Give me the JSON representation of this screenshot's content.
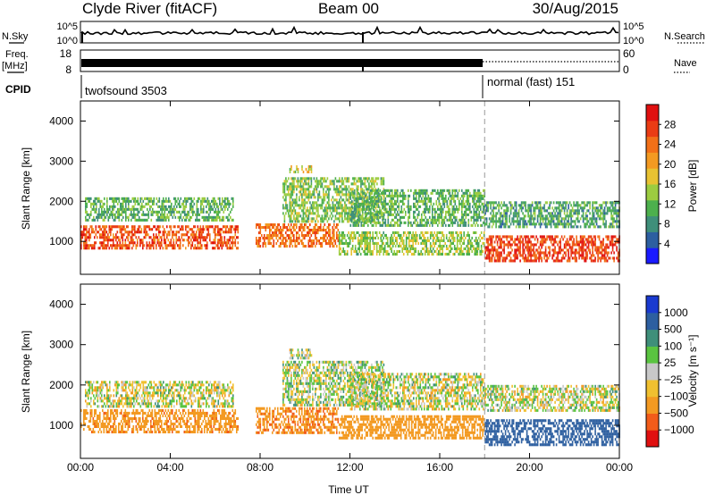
{
  "header": {
    "station": "Clyde River (fitACF)",
    "beam": "Beam 00",
    "date": "30/Aug/2015"
  },
  "top_panels": {
    "nsky": {
      "label": "N.Sky",
      "ticks": [
        "10^5",
        "10^0"
      ]
    },
    "nsearch": {
      "label": "N.Search",
      "ticks": [
        "10^5",
        "10^0"
      ]
    },
    "freq": {
      "label_line1": "Freq.",
      "label_line2": "[MHz]",
      "ticks": [
        "18",
        "8"
      ]
    },
    "nave": {
      "label": "Nave",
      "ticks": [
        "60",
        "0"
      ]
    },
    "cpid": {
      "label": "CPID",
      "modes": [
        "twofsound 3503",
        "normal (fast) 151"
      ]
    }
  },
  "chart_data": [
    {
      "type": "heatmap",
      "name": "power",
      "xlabel": "Time UT",
      "ylabel": "Slant Range [km]",
      "xlim": [
        0,
        24
      ],
      "ylim": [
        180,
        4500
      ],
      "x_ticks": [
        0,
        4,
        8,
        12,
        16,
        20,
        24
      ],
      "x_tick_labels": [
        "00:00",
        "04:00",
        "08:00",
        "12:00",
        "16:00",
        "20:00",
        "00:00"
      ],
      "y_ticks": [
        1000,
        2000,
        3000,
        4000
      ],
      "y_tick_labels": [
        "1000",
        "2000",
        "3000",
        "4000"
      ],
      "colorbar": {
        "label": "Power [dB]",
        "range": [
          0,
          32
        ],
        "ticks": [
          4,
          8,
          12,
          16,
          20,
          24,
          28
        ],
        "tick_labels": [
          "4",
          "8",
          "12",
          "16",
          "20",
          "24",
          "28"
        ],
        "colors": [
          "#1a1aff",
          "#2d5fa0",
          "#3f8f7a",
          "#4db04d",
          "#9ccc40",
          "#e8c232",
          "#f39a22",
          "#f27018",
          "#ea3c14",
          "#e01010"
        ]
      },
      "mode_change_time": 18,
      "echo_regions": [
        {
          "t0": 0.0,
          "t1": 7.0,
          "r0": 850,
          "r1": 1400,
          "value": 26
        },
        {
          "t0": 0.2,
          "t1": 6.8,
          "r0": 1500,
          "r1": 2100,
          "value": 11
        },
        {
          "t0": 7.8,
          "t1": 11.5,
          "r0": 850,
          "r1": 1450,
          "value": 24
        },
        {
          "t0": 9.0,
          "t1": 13.5,
          "r0": 1500,
          "r1": 2600,
          "value": 13
        },
        {
          "t0": 9.3,
          "t1": 10.3,
          "r0": 2700,
          "r1": 2900,
          "value": 17
        },
        {
          "t0": 11.5,
          "t1": 18.0,
          "r0": 700,
          "r1": 1250,
          "value": 14
        },
        {
          "t0": 12.0,
          "t1": 18.0,
          "r0": 1400,
          "r1": 2300,
          "value": 11
        },
        {
          "t0": 18.0,
          "t1": 24.0,
          "r0": 500,
          "r1": 1150,
          "value": 27
        },
        {
          "t0": 18.0,
          "t1": 24.0,
          "r0": 1350,
          "r1": 2000,
          "value": 10
        }
      ]
    },
    {
      "type": "heatmap",
      "name": "velocity",
      "xlabel": "Time UT",
      "ylabel": "Slant Range [km]",
      "xlim": [
        0,
        24
      ],
      "ylim": [
        180,
        4500
      ],
      "x_ticks": [
        0,
        4,
        8,
        12,
        16,
        20,
        24
      ],
      "x_tick_labels": [
        "00:00",
        "04:00",
        "08:00",
        "12:00",
        "16:00",
        "20:00",
        "00:00"
      ],
      "y_ticks": [
        1000,
        2000,
        3000,
        4000
      ],
      "y_tick_labels": [
        "1000",
        "2000",
        "3000",
        "4000"
      ],
      "colorbar": {
        "label": "Velocity [m s⁻¹]",
        "boundaries": [
          -1000,
          -500,
          -100,
          -25,
          25,
          100,
          500,
          1000
        ],
        "tick_labels": [
          "1000",
          "500",
          "100",
          "25",
          "−25",
          "−100",
          "−500",
          "−1000"
        ],
        "colors": [
          "#e01010",
          "#f25c1a",
          "#f39a22",
          "#f0c030",
          "#c8c8c8",
          "#5ac440",
          "#3f8f7a",
          "#2d5fa0",
          "#1a3ad0"
        ]
      },
      "mode_change_time": 18,
      "echo_regions": [
        {
          "t0": 0.0,
          "t1": 7.0,
          "r0": 850,
          "r1": 1400,
          "value": -400
        },
        {
          "t0": 0.2,
          "t1": 6.8,
          "r0": 1500,
          "r1": 2100,
          "value": 0
        },
        {
          "t0": 7.8,
          "t1": 11.5,
          "r0": 850,
          "r1": 1450,
          "value": -450
        },
        {
          "t0": 9.0,
          "t1": 13.5,
          "r0": 1500,
          "r1": 2600,
          "value": 20
        },
        {
          "t0": 9.3,
          "t1": 10.3,
          "r0": 2700,
          "r1": 2900,
          "value": 10
        },
        {
          "t0": 11.5,
          "t1": 18.0,
          "r0": 700,
          "r1": 1250,
          "value": -300
        },
        {
          "t0": 12.0,
          "t1": 18.0,
          "r0": 1400,
          "r1": 2300,
          "value": 0
        },
        {
          "t0": 18.0,
          "t1": 24.0,
          "r0": 500,
          "r1": 1150,
          "value": 750
        },
        {
          "t0": 18.0,
          "t1": 24.0,
          "r0": 1350,
          "r1": 2000,
          "value": 0
        }
      ]
    }
  ]
}
